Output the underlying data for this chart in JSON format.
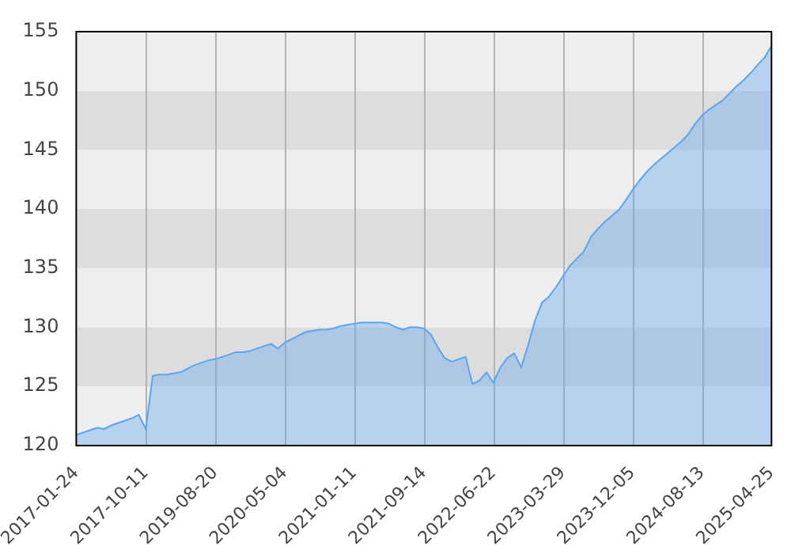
{
  "chart_data": {
    "type": "area",
    "categories": [
      "2017-01-24",
      null,
      null,
      null,
      null,
      null,
      null,
      null,
      null,
      null,
      "2017-10-11",
      null,
      null,
      null,
      null,
      null,
      null,
      null,
      null,
      null,
      "2019-08-20",
      null,
      null,
      null,
      null,
      null,
      null,
      null,
      null,
      null,
      "2020-05-04",
      null,
      null,
      null,
      null,
      null,
      null,
      null,
      null,
      null,
      "2021-01-11",
      null,
      null,
      null,
      null,
      null,
      null,
      null,
      null,
      null,
      "2021-09-14",
      null,
      null,
      null,
      null,
      null,
      null,
      null,
      null,
      null,
      "2022-06-22",
      null,
      null,
      null,
      null,
      null,
      null,
      null,
      null,
      null,
      "2023-03-29",
      null,
      null,
      null,
      null,
      null,
      null,
      null,
      null,
      null,
      "2023-12-05",
      null,
      null,
      null,
      null,
      null,
      null,
      null,
      null,
      null,
      "2024-08-13",
      null,
      null,
      null,
      null,
      null,
      null,
      null,
      null,
      null,
      "2025-04-25"
    ],
    "series": [
      {
        "color": "#5aa5f0",
        "values": [
          120.9,
          121.1,
          121.3,
          121.5,
          121.4,
          121.7,
          121.9,
          122.1,
          122.3,
          122.6,
          121.4,
          125.9,
          126.0,
          126.0,
          126.1,
          126.2,
          126.5,
          126.8,
          127.0,
          127.2,
          127.3,
          127.5,
          127.7,
          127.9,
          127.9,
          128.0,
          128.2,
          128.4,
          128.6,
          128.2,
          128.7,
          129.0,
          129.3,
          129.6,
          129.7,
          129.8,
          129.8,
          129.9,
          130.1,
          130.2,
          130.3,
          130.4,
          130.4,
          130.4,
          130.4,
          130.3,
          130.0,
          129.8,
          130.0,
          130.0,
          129.9,
          129.4,
          128.3,
          127.4,
          127.1,
          127.3,
          127.5,
          125.2,
          125.5,
          126.2,
          125.3,
          126.6,
          127.4,
          127.8,
          126.6,
          128.5,
          130.6,
          132.1,
          132.6,
          133.4,
          134.3,
          135.2,
          135.8,
          136.4,
          137.6,
          138.3,
          138.9,
          139.4,
          139.9,
          140.7,
          141.6,
          142.4,
          143.1,
          143.7,
          144.2,
          144.7,
          145.2,
          145.7,
          146.3,
          147.2,
          147.9,
          148.4,
          148.8,
          149.2,
          149.8,
          150.4,
          150.9,
          151.5,
          152.2,
          152.8,
          153.8
        ]
      }
    ],
    "ylim": [
      120,
      155
    ],
    "yticks": [
      120,
      125,
      130,
      135,
      140,
      145,
      150,
      155
    ],
    "grid": true,
    "legend": false
  }
}
